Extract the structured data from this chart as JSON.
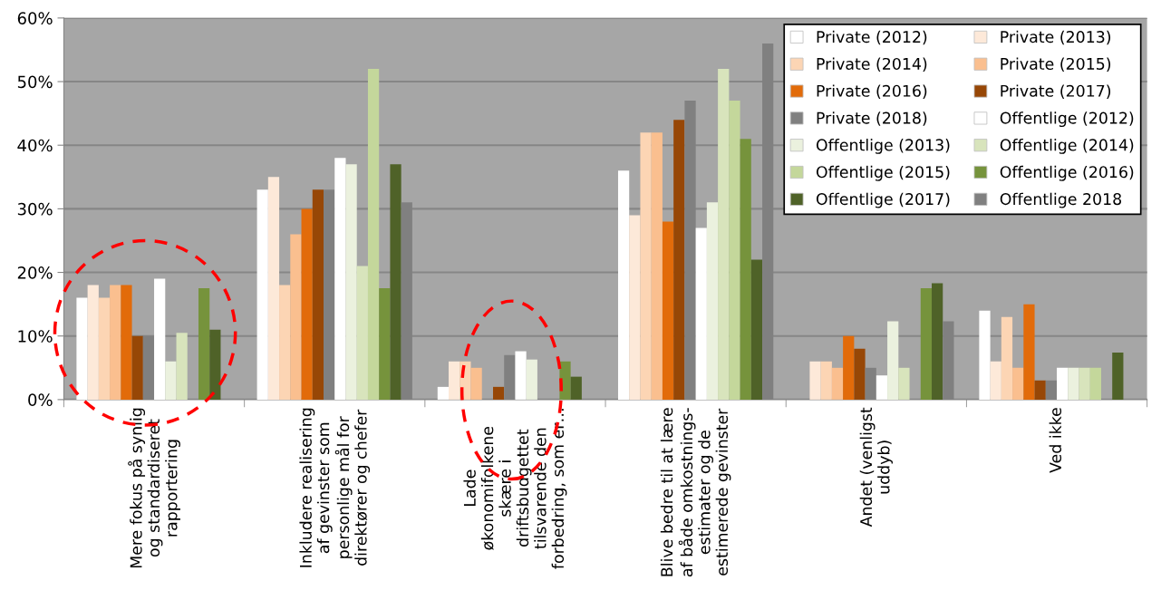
{
  "chart_data": {
    "type": "bar",
    "categories": [
      "Mere fokus på synlig\nog standardiseret\nrapportering",
      "Inkludere realisering\naf gevinster som\npersonlige mål for\ndirektører og chefer",
      "Lade\nøkonomifolkene\nskære i\ndriftsbudgettet\ntilsvarende den\nforbedring, som er…",
      "Blive bedre til at lære\naf både omkostnings-\nestimater og de\nestimerede gevinster",
      "Andet (venligst\nuddyb)",
      "Ved ikke"
    ],
    "series": [
      {
        "name": "Private (2012)",
        "color": "#ffffff",
        "values": [
          16,
          33,
          2,
          36,
          0,
          14
        ]
      },
      {
        "name": "Private (2013)",
        "color": "#fde9d9",
        "values": [
          18,
          35,
          6,
          29,
          6,
          6
        ]
      },
      {
        "name": "Private (2014)",
        "color": "#fcd5b4",
        "values": [
          16,
          18,
          6,
          42,
          6,
          13
        ]
      },
      {
        "name": "Private (2015)",
        "color": "#fabf8f",
        "values": [
          18,
          26,
          5,
          42,
          5,
          5
        ]
      },
      {
        "name": "Private (2016)",
        "color": "#e26b0a",
        "values": [
          18,
          30,
          0,
          28,
          10,
          15
        ]
      },
      {
        "name": "Private (2017)",
        "color": "#974706",
        "values": [
          10,
          33,
          2,
          44,
          8,
          3
        ]
      },
      {
        "name": "Private (2018)",
        "color": "#808080",
        "values": [
          10,
          33,
          7,
          47,
          5,
          3
        ]
      },
      {
        "name": "Offentlige (2012)",
        "color": "#ffffff",
        "values": [
          19,
          38,
          7.6,
          27,
          3.8,
          5
        ]
      },
      {
        "name": "Offentlige (2013)",
        "color": "#ebf1de",
        "values": [
          6,
          37,
          6.3,
          31,
          12.3,
          5
        ]
      },
      {
        "name": "Offentlige (2014)",
        "color": "#d8e4bc",
        "values": [
          10.5,
          21,
          0,
          52,
          5,
          5
        ]
      },
      {
        "name": "Offentlige (2015)",
        "color": "#c4d79b",
        "values": [
          0,
          52,
          0,
          47,
          0,
          5
        ]
      },
      {
        "name": "Offentlige (2016)",
        "color": "#76933c",
        "values": [
          17.5,
          17.5,
          6,
          41,
          17.5,
          0
        ]
      },
      {
        "name": "Offentlige (2017)",
        "color": "#4f6228",
        "values": [
          11,
          37,
          3.6,
          22,
          18.3,
          7.4
        ]
      },
      {
        "name": "Offentlige 2018",
        "color": "#808080",
        "values": [
          0,
          31,
          0,
          56,
          12.3,
          0
        ]
      }
    ],
    "ylim": [
      0,
      60
    ],
    "yticks": [
      {
        "value": 0,
        "label": "0%"
      },
      {
        "value": 10,
        "label": "10%"
      },
      {
        "value": 20,
        "label": "20%"
      },
      {
        "value": 30,
        "label": "30%"
      },
      {
        "value": 40,
        "label": "40%"
      },
      {
        "value": 50,
        "label": "50%"
      },
      {
        "value": 60,
        "label": "60%"
      }
    ],
    "grid": "y",
    "legend": "top right"
  }
}
